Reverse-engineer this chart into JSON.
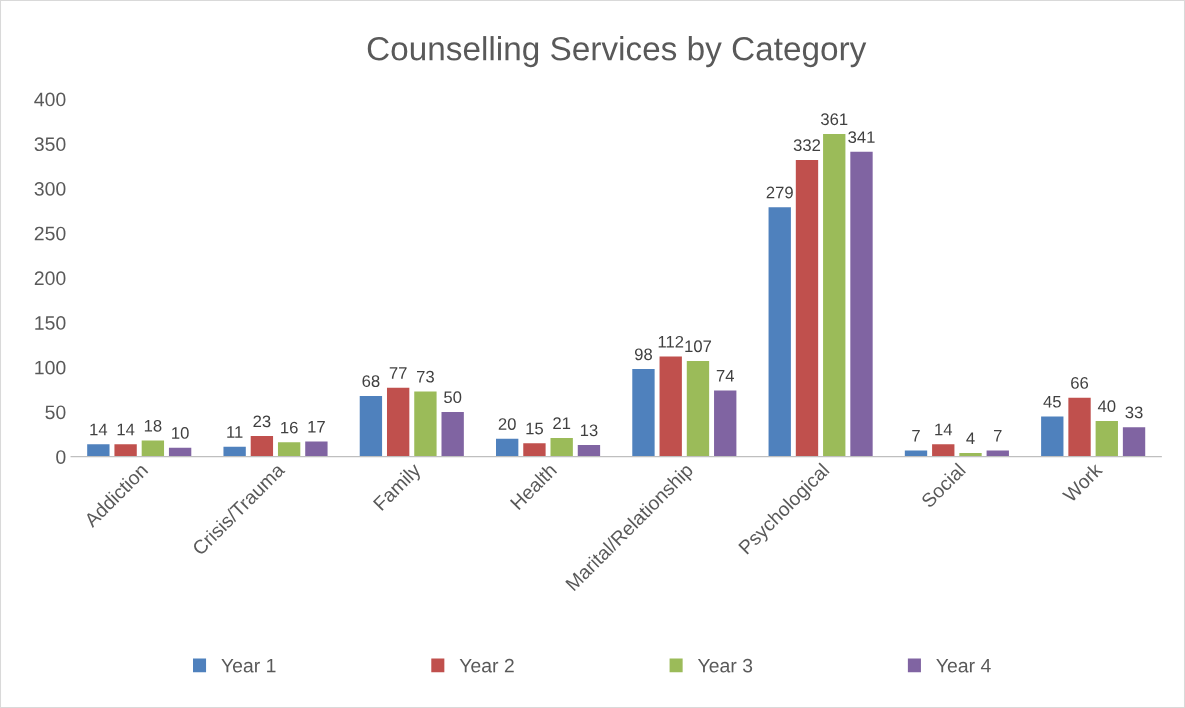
{
  "chart_data": {
    "type": "bar",
    "title": "Counselling Services by Category",
    "categories": [
      "Addiction",
      "Crisis/Trauma",
      "Family",
      "Health",
      "Marital/Relationship",
      "Psychological",
      "Social",
      "Work"
    ],
    "series": [
      {
        "name": "Year 1",
        "color": "#4f81bd",
        "values": [
          14,
          11,
          68,
          20,
          98,
          279,
          7,
          45
        ]
      },
      {
        "name": "Year 2",
        "color": "#c0504d",
        "values": [
          14,
          23,
          77,
          15,
          112,
          332,
          14,
          66
        ]
      },
      {
        "name": "Year 3",
        "color": "#9bbb59",
        "values": [
          18,
          16,
          73,
          21,
          107,
          361,
          4,
          40
        ]
      },
      {
        "name": "Year 4",
        "color": "#8064a2",
        "values": [
          10,
          17,
          50,
          13,
          74,
          341,
          7,
          33
        ]
      }
    ],
    "ylim": [
      0,
      400
    ],
    "yticks": [
      0,
      50,
      100,
      150,
      200,
      250,
      300,
      350,
      400
    ],
    "grid": false,
    "legend": "bottom",
    "data_labels": true
  }
}
